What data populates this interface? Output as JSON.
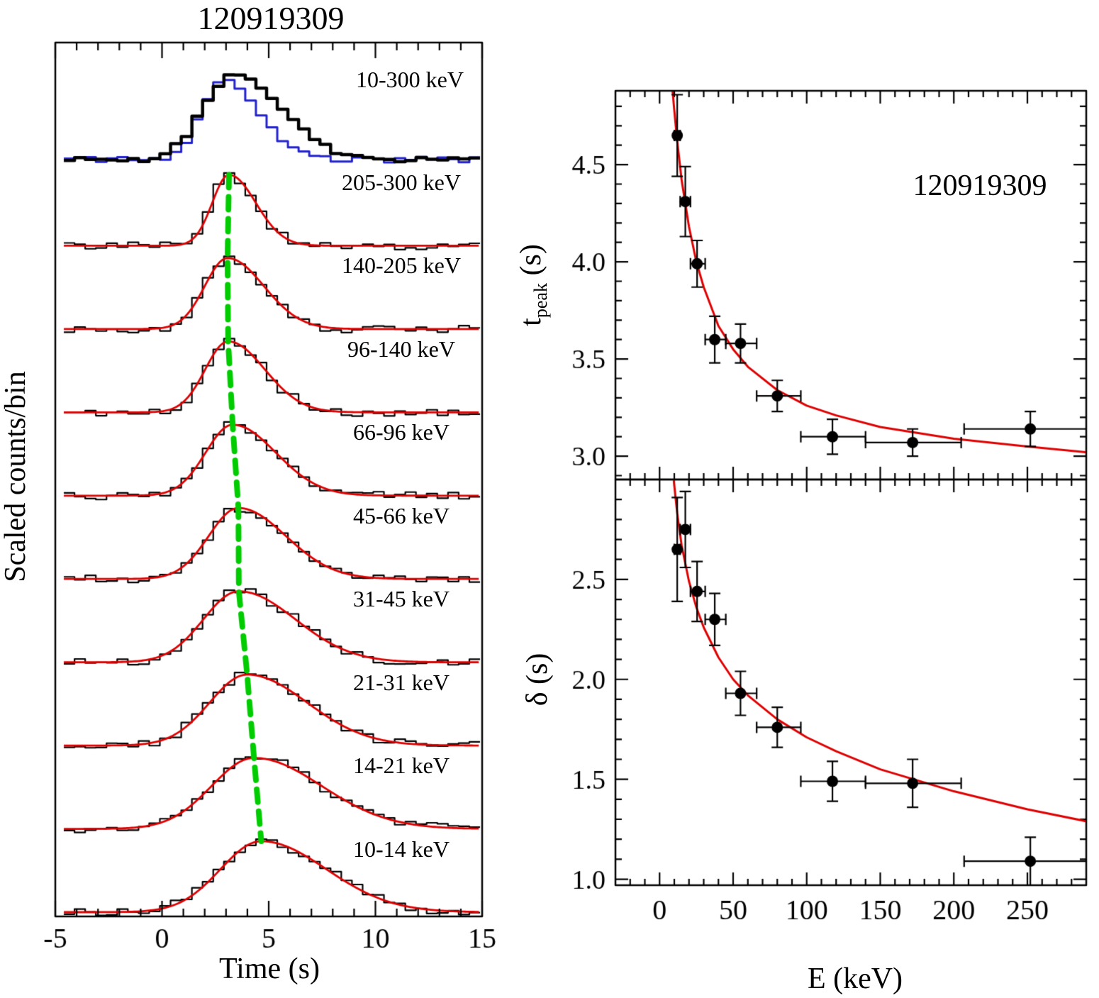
{
  "figure": {
    "background": "#ffffff",
    "accent_red": "#dd0000",
    "accent_blue": "#2222cc",
    "accent_green": "#00cc00",
    "frame_color": "#000000"
  },
  "chart_data": [
    {
      "type": "line",
      "panel": "light-curves",
      "title": "120919309",
      "xlabel": "Time (s)",
      "ylabel": "Scaled counts/bin",
      "x_range": [
        -5,
        15
      ],
      "x_major_ticks": [
        -5,
        0,
        5,
        10,
        15
      ],
      "x_minor_step": 1,
      "bin_width_s": 0.5,
      "grid": false,
      "composite": {
        "label": "10-300 keV",
        "series": [
          {
            "name": "sum-band-histogram",
            "color": "#000000",
            "peak_s": 3.35,
            "sigma_s": 1.95,
            "linewidth": 4.5
          },
          {
            "name": "second-detector-histogram",
            "color": "#2222cc",
            "peak_s": 2.9,
            "sigma_s": 1.45,
            "linewidth": 3
          }
        ]
      },
      "bands": [
        {
          "label": "205-300 keV",
          "peak_s": 3.14,
          "width_s": 1.09
        },
        {
          "label": "140-205 keV",
          "peak_s": 3.07,
          "width_s": 1.48
        },
        {
          "label": "96-140 keV",
          "peak_s": 3.1,
          "width_s": 1.49
        },
        {
          "label": "66-96 keV",
          "peak_s": 3.31,
          "width_s": 1.76
        },
        {
          "label": "45-66 keV",
          "peak_s": 3.58,
          "width_s": 1.93
        },
        {
          "label": "31-45 keV",
          "peak_s": 3.6,
          "width_s": 2.3
        },
        {
          "label": "21-31 keV",
          "peak_s": 3.99,
          "width_s": 2.44
        },
        {
          "label": "14-21 keV",
          "peak_s": 4.31,
          "width_s": 2.75
        },
        {
          "label": "10-14 keV",
          "peak_s": 4.65,
          "width_s": 2.65
        }
      ],
      "fit_color": "#dd0000",
      "peak_drift_line": {
        "color": "#00cc00",
        "style": "dashed"
      }
    },
    {
      "type": "scatter",
      "panel": "tpeak-vs-energy",
      "annotation": "120919309",
      "ylabel_parts": [
        "t",
        "peak",
        " (s)"
      ],
      "xlabel": "E (keV)",
      "x_range": [
        -30,
        290
      ],
      "y_range": [
        2.88,
        4.88
      ],
      "x_major_ticks": [
        0,
        50,
        100,
        150,
        200,
        250
      ],
      "x_minor_step": 10,
      "y_major_ticks": [
        3.0,
        3.5,
        4.0,
        4.5
      ],
      "y_minor_step": 0.1,
      "legend": false,
      "grid": false,
      "points": [
        {
          "E": 12,
          "E_lo": 10,
          "E_hi": 14,
          "y": 4.65,
          "err": 0.21
        },
        {
          "E": 17.5,
          "E_lo": 14,
          "E_hi": 21,
          "y": 4.31,
          "err": 0.18
        },
        {
          "E": 25.5,
          "E_lo": 21,
          "E_hi": 31,
          "y": 3.99,
          "err": 0.12
        },
        {
          "E": 37.5,
          "E_lo": 31,
          "E_hi": 45,
          "y": 3.6,
          "err": 0.12
        },
        {
          "E": 55,
          "E_lo": 45,
          "E_hi": 66,
          "y": 3.58,
          "err": 0.1
        },
        {
          "E": 80,
          "E_lo": 66,
          "E_hi": 96,
          "y": 3.31,
          "err": 0.08
        },
        {
          "E": 117.5,
          "E_lo": 96,
          "E_hi": 140,
          "y": 3.1,
          "err": 0.09
        },
        {
          "E": 172,
          "E_lo": 140,
          "E_hi": 205,
          "y": 3.07,
          "err": 0.07
        },
        {
          "E": 252,
          "E_lo": 207,
          "E_hi": 297,
          "y": 3.14,
          "err": 0.09
        }
      ],
      "fit": {
        "color": "#dd0000",
        "E": [
          8,
          10,
          12,
          15,
          20,
          25,
          30,
          40,
          50,
          60,
          80,
          100,
          120,
          150,
          200,
          250,
          290
        ],
        "y": [
          4.95,
          4.78,
          4.62,
          4.42,
          4.18,
          4.0,
          3.87,
          3.67,
          3.55,
          3.46,
          3.34,
          3.26,
          3.21,
          3.15,
          3.09,
          3.05,
          3.02
        ]
      }
    },
    {
      "type": "scatter",
      "panel": "delta-vs-energy",
      "ylabel": "δ (s)",
      "xlabel": "E (keV)",
      "x_range": [
        -30,
        290
      ],
      "y_range": [
        0.97,
        3.0
      ],
      "x_major_ticks": [
        0,
        50,
        100,
        150,
        200,
        250
      ],
      "x_minor_step": 10,
      "y_major_ticks": [
        1.0,
        1.5,
        2.0,
        2.5
      ],
      "y_minor_step": 0.1,
      "legend": false,
      "grid": false,
      "points": [
        {
          "E": 12,
          "E_lo": 10,
          "E_hi": 14,
          "y": 2.65,
          "err": 0.26
        },
        {
          "E": 17.5,
          "E_lo": 14,
          "E_hi": 21,
          "y": 2.75,
          "err": 0.19
        },
        {
          "E": 25.5,
          "E_lo": 21,
          "E_hi": 31,
          "y": 2.44,
          "err": 0.15
        },
        {
          "E": 37.5,
          "E_lo": 31,
          "E_hi": 45,
          "y": 2.3,
          "err": 0.13
        },
        {
          "E": 55,
          "E_lo": 45,
          "E_hi": 66,
          "y": 1.93,
          "err": 0.11
        },
        {
          "E": 80,
          "E_lo": 66,
          "E_hi": 96,
          "y": 1.76,
          "err": 0.1
        },
        {
          "E": 117.5,
          "E_lo": 96,
          "E_hi": 140,
          "y": 1.49,
          "err": 0.1
        },
        {
          "E": 172,
          "E_lo": 140,
          "E_hi": 205,
          "y": 1.48,
          "err": 0.12
        },
        {
          "E": 252,
          "E_lo": 207,
          "E_hi": 297,
          "y": 1.09,
          "err": 0.12
        }
      ],
      "fit": {
        "color": "#dd0000",
        "E": [
          9,
          10,
          12,
          15,
          20,
          25,
          30,
          40,
          50,
          60,
          80,
          100,
          120,
          150,
          200,
          250,
          290
        ],
        "y": [
          3.05,
          2.97,
          2.83,
          2.67,
          2.49,
          2.36,
          2.26,
          2.11,
          2.0,
          1.92,
          1.8,
          1.71,
          1.64,
          1.55,
          1.44,
          1.35,
          1.29
        ]
      }
    }
  ]
}
